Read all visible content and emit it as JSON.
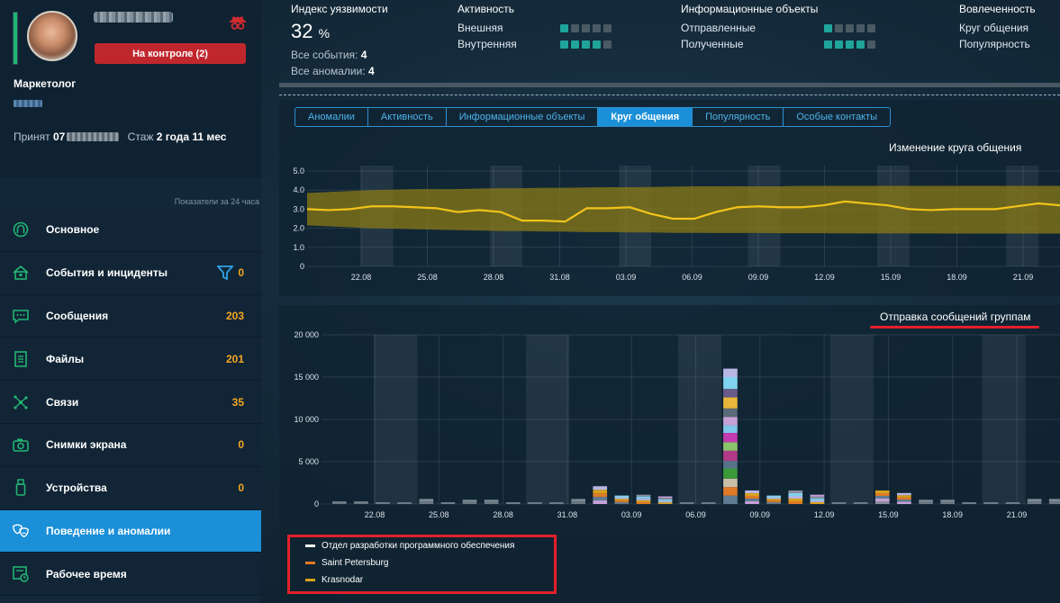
{
  "profile": {
    "control_button": "На контроле (2)",
    "role": "Маркетолог",
    "hired_label": "Принят",
    "hired_day": "07",
    "tenure_label": "Стаж",
    "tenure_value": "2 года 11 мес",
    "activity_level": 1.0
  },
  "sidebar": {
    "indicators_note": "Показатели за 24 часа",
    "items": [
      {
        "label": "Основное",
        "count": "",
        "icon": "user-circle-icon"
      },
      {
        "label": "События и инциденты",
        "count": "0",
        "icon": "house-alert-icon"
      },
      {
        "label": "Сообщения",
        "count": "203",
        "icon": "chat-bubble-icon"
      },
      {
        "label": "Файлы",
        "count": "201",
        "icon": "document-icon"
      },
      {
        "label": "Связи",
        "count": "35",
        "icon": "network-icon"
      },
      {
        "label": "Снимки экрана",
        "count": "0",
        "icon": "camera-icon"
      },
      {
        "label": "Устройства",
        "count": "0",
        "icon": "usb-icon"
      },
      {
        "label": "Поведение и аномалии",
        "count": "",
        "icon": "masks-icon",
        "active": true
      },
      {
        "label": "Рабочее время",
        "count": "",
        "icon": "clock-icon"
      }
    ]
  },
  "metrics": {
    "vulnerability": {
      "title": "Индекс уязвимости",
      "value": "32",
      "unit": "%",
      "events_label": "Все события:",
      "events_value": "4",
      "anomalies_label": "Все аномалии:",
      "anomalies_value": "4"
    },
    "activity": {
      "title": "Активность",
      "rows": [
        {
          "label": "Внешняя",
          "level": 1
        },
        {
          "label": "Внутренняя",
          "level": 4
        }
      ]
    },
    "info_objects": {
      "title": "Информационные объекты",
      "rows": [
        {
          "label": "Отправленные",
          "level": 1
        },
        {
          "label": "Полученные",
          "level": 4
        }
      ]
    },
    "involvement": {
      "title": "Вовлеченность",
      "rows": [
        {
          "label": "Круг общения"
        },
        {
          "label": "Популярность"
        }
      ]
    }
  },
  "tabs": [
    {
      "label": "Аномалии",
      "active": false
    },
    {
      "label": "Активность",
      "active": false
    },
    {
      "label": "Информационные объекты",
      "active": false
    },
    {
      "label": "Круг общения",
      "active": true
    },
    {
      "label": "Популярность",
      "active": false
    },
    {
      "label": "Особые контакты",
      "active": false
    }
  ],
  "colors": {
    "accent": "#1b8fd8",
    "alert": "#c0272d",
    "line": "#f2c419",
    "band": "#8a7a16",
    "warning_text": "#f5a623",
    "dot_on": "#1fa59a"
  },
  "chart_data": [
    {
      "type": "line",
      "title": "Изменение круга общения",
      "ylim": [
        0,
        5
      ],
      "yticks": [
        "0",
        "1.0",
        "2.0",
        "3.0",
        "4.0",
        "5.0"
      ],
      "x_ticks": [
        "22.08",
        "25.08",
        "28.08",
        "31.08",
        "03.09",
        "06.09",
        "09.09",
        "12.09",
        "15.09",
        "18.09",
        "21.09"
      ],
      "values": [
        3.0,
        2.95,
        3.0,
        3.15,
        3.15,
        3.1,
        3.05,
        2.85,
        2.95,
        2.85,
        2.4,
        2.4,
        2.35,
        3.05,
        3.05,
        3.1,
        2.75,
        2.5,
        2.5,
        2.85,
        3.1,
        3.15,
        3.1,
        3.1,
        3.2,
        3.4,
        3.3,
        3.2,
        3.0,
        2.95,
        3.0,
        3.0,
        3.0,
        3.15,
        3.3,
        3.2
      ],
      "band_upper": [
        3.85,
        3.9,
        3.95,
        4.0,
        4.02,
        4.05,
        4.05,
        4.05,
        4.08,
        4.1,
        4.1,
        4.12,
        4.12,
        4.14,
        4.15,
        4.15,
        4.16,
        4.18,
        4.2,
        4.2,
        4.2,
        4.2,
        4.2,
        4.22,
        4.22,
        4.22,
        4.22,
        4.22,
        4.22,
        4.22,
        4.22,
        4.22,
        4.22,
        4.22,
        4.22,
        4.22
      ],
      "band_lower": [
        2.15,
        2.1,
        2.05,
        2.0,
        1.98,
        1.95,
        1.93,
        1.9,
        1.88,
        1.85,
        1.85,
        1.83,
        1.82,
        1.8,
        1.8,
        1.78,
        1.78,
        1.76,
        1.76,
        1.75,
        1.75,
        1.75,
        1.74,
        1.74,
        1.74,
        1.73,
        1.73,
        1.73,
        1.73,
        1.73,
        1.72,
        1.72,
        1.72,
        1.72,
        1.72,
        1.72
      ],
      "weekends": [
        [
          2,
          4
        ],
        [
          8,
          10
        ],
        [
          14,
          16
        ],
        [
          20,
          22
        ],
        [
          26,
          28
        ],
        [
          32,
          34
        ]
      ],
      "grid": true,
      "legend": "none"
    },
    {
      "type": "bar",
      "title": "Отправка сообщений группам",
      "ylim": [
        0,
        20000
      ],
      "yticks": [
        "0",
        "5 000",
        "10 000",
        "15 000",
        "20 000"
      ],
      "x_ticks": [
        "22.08",
        "25.08",
        "28.08",
        "31.08",
        "03.09",
        "06.09",
        "09.09",
        "12.09",
        "15.09",
        "18.09",
        "21.09"
      ],
      "stacked": true,
      "values": [
        300,
        300,
        0,
        0,
        600,
        0,
        500,
        500,
        0,
        0,
        0,
        600,
        2100,
        1000,
        1100,
        900,
        0,
        0,
        16000,
        1600,
        1000,
        1600,
        1100,
        0,
        0,
        1600,
        1300,
        500,
        500,
        0,
        0,
        0,
        600,
        600
      ],
      "spike_stack": [
        {
          "name": "",
          "value": 1000,
          "color": "#b8b7e3"
        },
        {
          "name": "",
          "value": 1400,
          "color": "#7fd3ee"
        },
        {
          "name": "",
          "value": 1000,
          "color": "#6a5a8a"
        },
        {
          "name": "",
          "value": 1300,
          "color": "#e8b63a"
        },
        {
          "name": "",
          "value": 1000,
          "color": "#5a6a78"
        },
        {
          "name": "",
          "value": 1000,
          "color": "#c7a1d8"
        },
        {
          "name": "",
          "value": 900,
          "color": "#7fc6e8"
        },
        {
          "name": "",
          "value": 1100,
          "color": "#c43bb0"
        },
        {
          "name": "",
          "value": 1000,
          "color": "#8dc36a"
        },
        {
          "name": "",
          "value": 1200,
          "color": "#b13a88"
        },
        {
          "name": "",
          "value": 900,
          "color": "#56738a"
        },
        {
          "name": "",
          "value": 1200,
          "color": "#3a9a3a"
        },
        {
          "name": "",
          "value": 1000,
          "color": "#c9bfa8"
        },
        {
          "name": "",
          "value": 1000,
          "color": "#e07a26"
        },
        {
          "name": "",
          "value": 1000,
          "color": "#5f7c93"
        }
      ],
      "weekends": [
        [
          2,
          4
        ],
        [
          9,
          11
        ],
        [
          16,
          18
        ],
        [
          23,
          25
        ],
        [
          30,
          32
        ]
      ],
      "grid": true,
      "legend": "bottom-left",
      "series": [
        {
          "name": "Отдел разработки программного обеспечения",
          "color": "#f0f5ea"
        },
        {
          "name": "Saint Petersburg",
          "color": "#e07a26"
        },
        {
          "name": "Krasnodar",
          "color": "#d8a21c"
        }
      ]
    }
  ]
}
